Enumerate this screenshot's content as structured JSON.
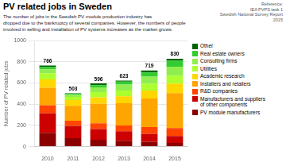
{
  "chart_data": {
    "type": "bar",
    "title": "PV related jobs in Sweden",
    "subtitle": "The number of jobs in the Swedish PV module production industry has\ndropped due to the bankruptcy of several companies. However, the numbers of people\ninvolved in selling and installation of PV systems increases as the market grows.",
    "source": "Reference:\nIEA PVPS task 1\nSwedish National Survey Report\n2015",
    "ylabel": "Number of PV related jobs",
    "categories": [
      "2010",
      "2011",
      "2012",
      "2013",
      "2014",
      "2015"
    ],
    "series": [
      {
        "name": "PV module manufacturers",
        "color": "#8B0000",
        "values": [
          130,
          80,
          65,
          55,
          45,
          35
        ]
      },
      {
        "name": "Manufacturers and suppliers\nof other components",
        "color": "#CC0000",
        "values": [
          185,
          115,
          100,
          90,
          75,
          65
        ]
      },
      {
        "name": "R&D companies",
        "color": "#FF4500",
        "values": [
          75,
          50,
          55,
          55,
          65,
          75
        ]
      },
      {
        "name": "Installers and retailers",
        "color": "#FFA500",
        "values": [
          165,
          140,
          185,
          210,
          270,
          330
        ]
      },
      {
        "name": "Academic research",
        "color": "#FFD700",
        "values": [
          80,
          55,
          60,
          65,
          75,
          90
        ]
      },
      {
        "name": "Utilities",
        "color": "#ADFF2F",
        "values": [
          55,
          30,
          50,
          55,
          65,
          75
        ]
      },
      {
        "name": "Consulting firms",
        "color": "#90EE50",
        "values": [
          40,
          20,
          45,
          55,
          65,
          85
        ]
      },
      {
        "name": "Real estate owners",
        "color": "#32CD32",
        "values": [
          20,
          10,
          20,
          28,
          40,
          55
        ]
      },
      {
        "name": "Other",
        "color": "#006400",
        "values": [
          16,
          3,
          16,
          10,
          19,
          20
        ]
      }
    ],
    "totals": [
      766,
      503,
      596,
      623,
      719,
      830
    ],
    "ylim": [
      0,
      1000
    ],
    "yticks": [
      0,
      200,
      400,
      600,
      800,
      1000
    ],
    "stacked": true,
    "grid": true,
    "legend": "right"
  }
}
